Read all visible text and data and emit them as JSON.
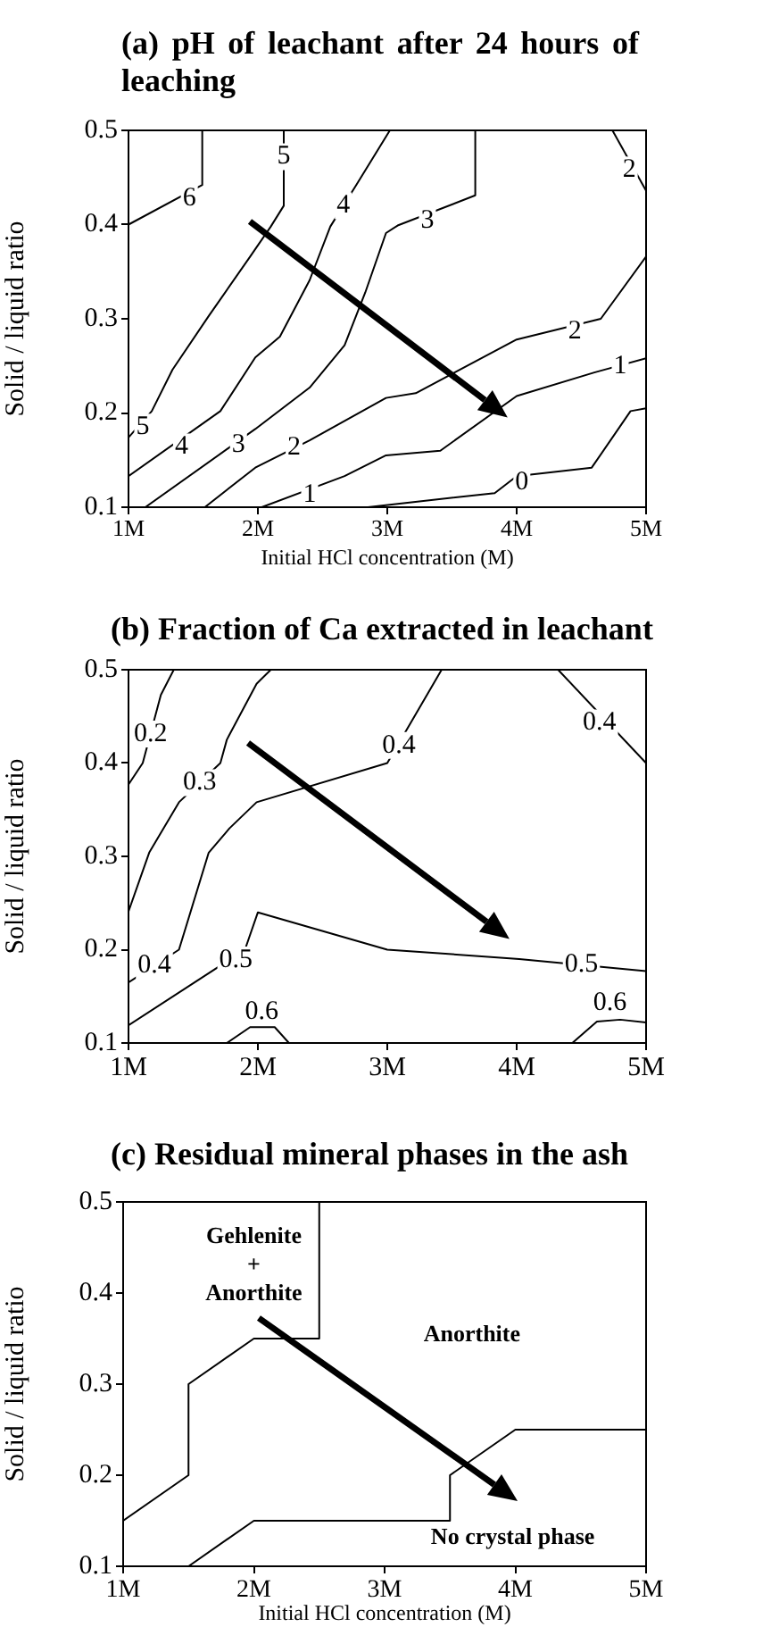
{
  "chart_data": [
    {
      "type": "line",
      "title": "(a) pH of leachant after 24 hours of leaching",
      "xlabel": "Initial HCl concentration (M)",
      "ylabel": "Solid / liquid ratio",
      "xlim": [
        1,
        5
      ],
      "ylim": [
        0.1,
        0.5
      ],
      "xticks": [
        {
          "value": 1,
          "label": "1M"
        },
        {
          "value": 2,
          "label": "2M"
        },
        {
          "value": 3,
          "label": "3M"
        },
        {
          "value": 4,
          "label": "4M"
        },
        {
          "value": 5,
          "label": "5M"
        }
      ],
      "yticks": [
        0.1,
        0.2,
        0.3,
        0.4,
        0.5
      ],
      "marker": "none",
      "series": [
        {
          "color": "#000000",
          "x": [
            1,
            1.57,
            1.57
          ],
          "values": [
            0.4,
            0.442,
            0.5
          ]
        },
        {
          "color": "#000000",
          "x": [
            1,
            1.18,
            1.34,
            1.62,
            1.94,
            2.1,
            2.2,
            2.2
          ],
          "values": [
            0.174,
            0.202,
            0.246,
            0.303,
            0.366,
            0.398,
            0.42,
            0.5
          ]
        },
        {
          "color": "#000000",
          "x": [
            1,
            1.71,
            1.98,
            2.17,
            2.4,
            2.56,
            2.76,
            3.02
          ],
          "values": [
            0.133,
            0.202,
            0.259,
            0.281,
            0.341,
            0.398,
            0.442,
            0.5
          ]
        },
        {
          "color": "#000000",
          "x": [
            1.13,
            1.98,
            2.4,
            2.67,
            2.83,
            2.99,
            3.08,
            3.68,
            3.68
          ],
          "values": [
            0.1,
            0.183,
            0.227,
            0.272,
            0.328,
            0.391,
            0.399,
            0.431,
            0.5
          ]
        },
        {
          "color": "#000000",
          "x": [
            1.59,
            1.98,
            2.4,
            2.99,
            3.22,
            4,
            4.65,
            5
          ],
          "values": [
            0.1,
            0.142,
            0.171,
            0.216,
            0.221,
            0.278,
            0.3,
            0.366
          ]
        },
        {
          "color": "#000000",
          "x": [
            4.74,
            5
          ],
          "values": [
            0.5,
            0.436
          ]
        },
        {
          "color": "#000000",
          "x": [
            2.03,
            2.67,
            2.99,
            3.41,
            4,
            4.6,
            5
          ],
          "values": [
            0.1,
            0.133,
            0.155,
            0.16,
            0.218,
            0.243,
            0.258
          ]
        },
        {
          "color": "#000000",
          "x": [
            2.85,
            3.83,
            4,
            4.58,
            4.88,
            5
          ],
          "values": [
            0.1,
            0.115,
            0.133,
            0.142,
            0.202,
            0.205
          ]
        }
      ],
      "annotations": [
        {
          "text": "6",
          "x": 1.47,
          "y": 0.428
        },
        {
          "text": "5",
          "x": 1.11,
          "y": 0.185
        },
        {
          "text": "5",
          "x": 2.2,
          "y": 0.472
        },
        {
          "text": "4",
          "x": 1.41,
          "y": 0.164
        },
        {
          "text": "4",
          "x": 2.66,
          "y": 0.42
        },
        {
          "text": "3",
          "x": 1.85,
          "y": 0.166
        },
        {
          "text": "3",
          "x": 3.31,
          "y": 0.404
        },
        {
          "text": "2",
          "x": 2.28,
          "y": 0.163
        },
        {
          "text": "2",
          "x": 4.45,
          "y": 0.287
        },
        {
          "text": "2",
          "x": 4.87,
          "y": 0.458
        },
        {
          "text": "1",
          "x": 2.4,
          "y": 0.113
        },
        {
          "text": "1",
          "x": 4.8,
          "y": 0.25
        },
        {
          "text": "0",
          "x": 4.04,
          "y": 0.126
        }
      ]
    },
    {
      "type": "line",
      "title": "(b) Fraction of Ca extracted in leachant",
      "ylabel": "Solid / liquid ratio",
      "xlim": [
        1,
        5
      ],
      "ylim": [
        0.1,
        0.5
      ],
      "xticks": [
        {
          "value": 1,
          "label": "1M"
        },
        {
          "value": 2,
          "label": "2M"
        },
        {
          "value": 3,
          "label": "3M"
        },
        {
          "value": 4,
          "label": "4M"
        },
        {
          "value": 5,
          "label": "5M"
        }
      ],
      "yticks": [
        0.1,
        0.2,
        0.3,
        0.4,
        0.5
      ],
      "marker": "none",
      "series": [
        {
          "color": "#000000",
          "x": [
            1,
            1.11,
            1.25,
            1.35
          ],
          "values": [
            0.377,
            0.4,
            0.473,
            0.5
          ]
        },
        {
          "color": "#000000",
          "x": [
            1,
            1.16,
            1.39,
            1.71,
            1.76,
            1.99,
            2.1
          ],
          "values": [
            0.241,
            0.304,
            0.358,
            0.4,
            0.425,
            0.485,
            0.5
          ]
        },
        {
          "color": "#000000",
          "x": [
            1,
            1.39,
            1.62,
            1.78,
            1.99,
            3,
            3.42
          ],
          "values": [
            0.165,
            0.2,
            0.304,
            0.33,
            0.358,
            0.4,
            0.5
          ]
        },
        {
          "color": "#000000",
          "x": [
            4.32,
            5
          ],
          "values": [
            0.5,
            0.4
          ]
        },
        {
          "color": "#000000",
          "x": [
            1,
            1.9,
            2,
            3,
            4.02,
            5
          ],
          "values": [
            0.119,
            0.2,
            0.24,
            0.2,
            0.19,
            0.177
          ]
        },
        {
          "color": "#000000",
          "x": [
            1.76,
            1.94,
            2.13,
            2.24
          ],
          "values": [
            0.1,
            0.117,
            0.117,
            0.1
          ]
        },
        {
          "color": "#000000",
          "x": [
            4.43,
            4.62,
            4.8,
            5
          ],
          "values": [
            0.1,
            0.123,
            0.125,
            0.122
          ]
        }
      ],
      "annotations": [
        {
          "text": "0.2",
          "x": 1.17,
          "y": 0.431
        },
        {
          "text": "0.3",
          "x": 1.55,
          "y": 0.379
        },
        {
          "text": "0.4",
          "x": 1.2,
          "y": 0.183
        },
        {
          "text": "0.4",
          "x": 3.09,
          "y": 0.419
        },
        {
          "text": "0.4",
          "x": 4.64,
          "y": 0.443
        },
        {
          "text": "0.5",
          "x": 1.83,
          "y": 0.189
        },
        {
          "text": "0.5",
          "x": 4.5,
          "y": 0.184
        },
        {
          "text": "0.6",
          "x": 2.03,
          "y": 0.133
        },
        {
          "text": "0.6",
          "x": 4.72,
          "y": 0.143
        }
      ]
    },
    {
      "type": "line",
      "title": "(c) Residual mineral phases in the ash",
      "xlabel": "Initial HCl concentration (M)",
      "ylabel": "Solid / liquid ratio",
      "xlim": [
        1,
        5
      ],
      "ylim": [
        0.1,
        0.5
      ],
      "xticks": [
        {
          "value": 1,
          "label": "1M"
        },
        {
          "value": 2,
          "label": "2M"
        },
        {
          "value": 3,
          "label": "3M"
        },
        {
          "value": 4,
          "label": "4M"
        },
        {
          "value": 5,
          "label": "5M"
        }
      ],
      "yticks": [
        0.1,
        0.2,
        0.3,
        0.4,
        0.5
      ],
      "marker": "none",
      "series": [
        {
          "color": "#000000",
          "x": [
            1,
            1.5,
            1.5,
            2,
            2.5,
            2.5
          ],
          "values": [
            0.15,
            0.2,
            0.3,
            0.35,
            0.35,
            0.5
          ]
        },
        {
          "color": "#000000",
          "x": [
            1.5,
            2,
            3.5,
            3.5,
            4,
            5
          ],
          "values": [
            0.1,
            0.15,
            0.15,
            0.2,
            0.25,
            0.25
          ]
        }
      ],
      "annotations": [
        "Gehlenite\n+\nAnorthite",
        "Anorthite",
        "No crystal phase"
      ]
    }
  ]
}
